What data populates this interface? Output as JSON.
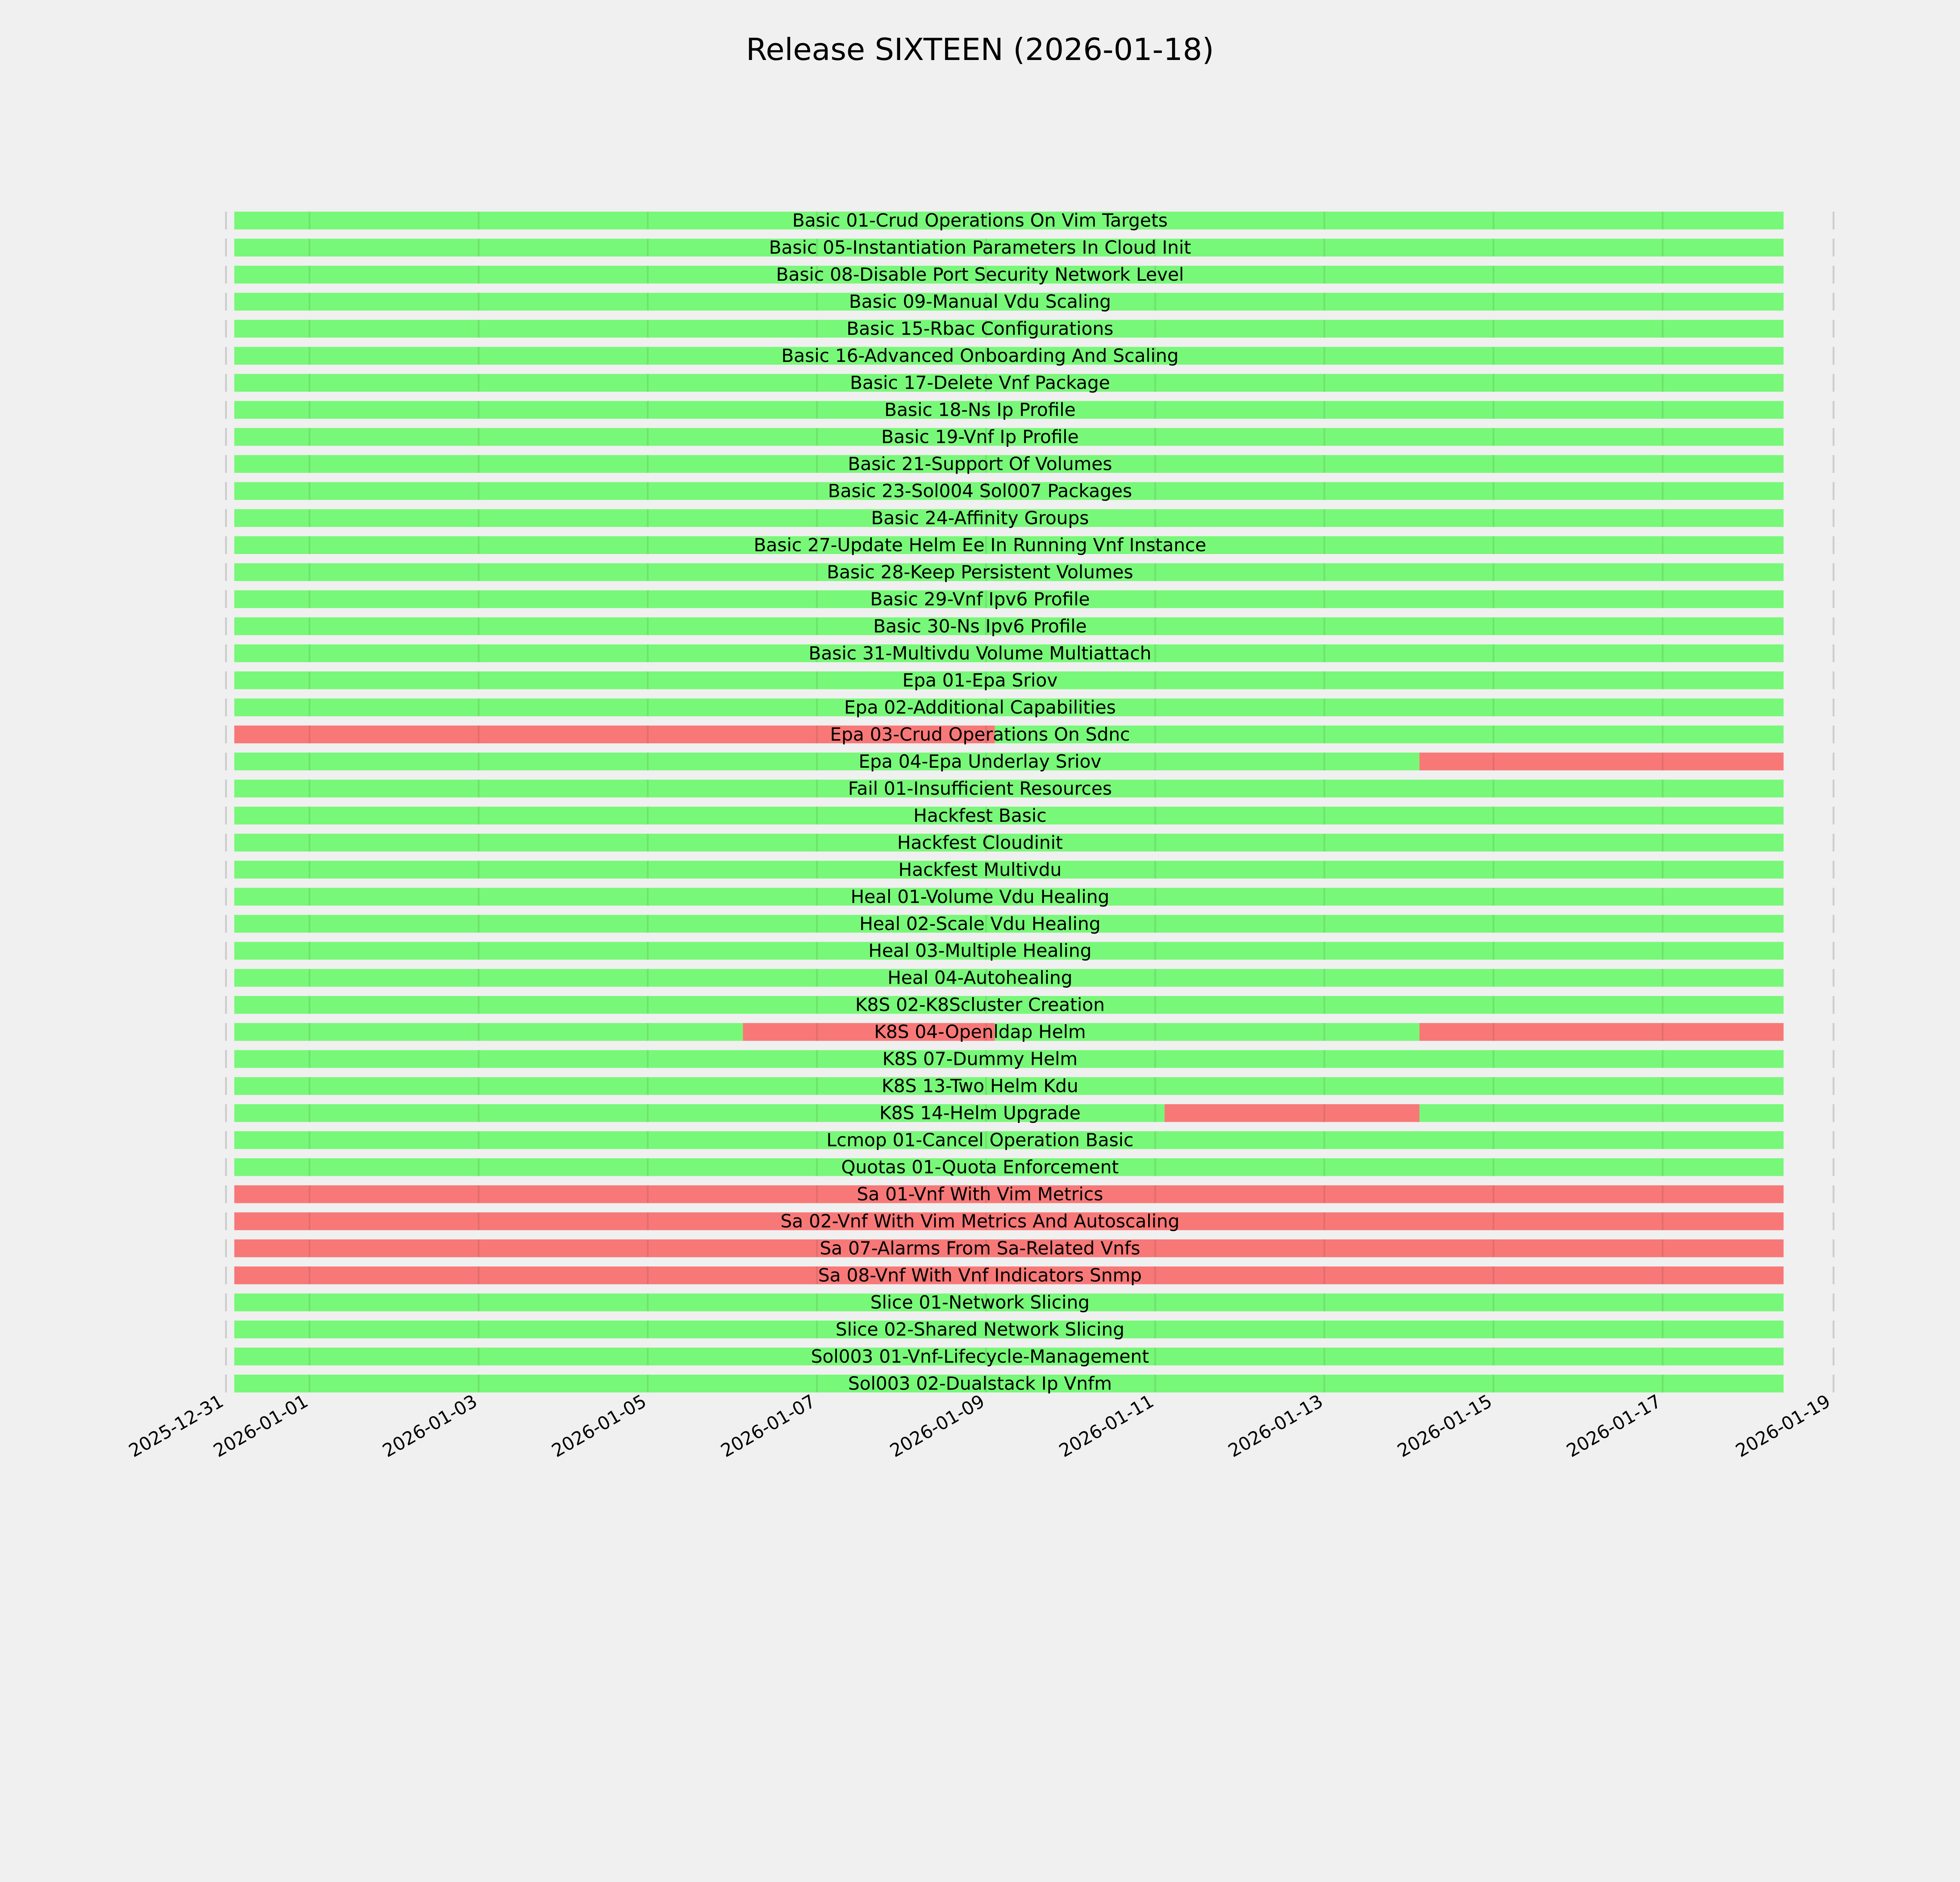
{
  "chart_data": {
    "type": "timeline",
    "title": "Release SIXTEEN (2026-01-18)",
    "xlabel": "",
    "ylabel": "",
    "x_axis": {
      "type": "date",
      "xlim": [
        "2025-12-31",
        "2026-01-19"
      ],
      "ticks": [
        "2025-12-31",
        "2026-01-01",
        "2026-01-03",
        "2026-01-05",
        "2026-01-07",
        "2026-01-09",
        "2026-01-11",
        "2026-01-13",
        "2026-01-15",
        "2026-01-17",
        "2026-01-19"
      ]
    },
    "grid": true,
    "colors": {
      "pass": "#78f878",
      "fail": "#f87878",
      "background": "#f0f0f0"
    },
    "range": {
      "start": "2025-12-31T02:40",
      "end": "2026-01-18T10:20"
    },
    "tests": [
      {
        "name": "Basic 01-Crud Operations On Vim Targets",
        "segments": [
          [
            "pass",
            "2025-12-31T02:40",
            "2026-01-18T10:20"
          ]
        ]
      },
      {
        "name": "Basic 05-Instantiation Parameters In Cloud Init",
        "segments": [
          [
            "pass",
            "2025-12-31T02:40",
            "2026-01-18T10:20"
          ]
        ]
      },
      {
        "name": "Basic 08-Disable Port Security Network Level",
        "segments": [
          [
            "pass",
            "2025-12-31T02:40",
            "2026-01-18T10:20"
          ]
        ]
      },
      {
        "name": "Basic 09-Manual Vdu Scaling",
        "segments": [
          [
            "pass",
            "2025-12-31T02:40",
            "2026-01-18T10:20"
          ]
        ]
      },
      {
        "name": "Basic 15-Rbac Configurations",
        "segments": [
          [
            "pass",
            "2025-12-31T02:40",
            "2026-01-18T10:20"
          ]
        ]
      },
      {
        "name": "Basic 16-Advanced Onboarding And Scaling",
        "segments": [
          [
            "pass",
            "2025-12-31T02:40",
            "2026-01-18T10:20"
          ]
        ]
      },
      {
        "name": "Basic 17-Delete Vnf Package",
        "segments": [
          [
            "pass",
            "2025-12-31T02:40",
            "2026-01-18T10:20"
          ]
        ]
      },
      {
        "name": "Basic 18-Ns Ip Profile",
        "segments": [
          [
            "pass",
            "2025-12-31T02:40",
            "2026-01-18T10:20"
          ]
        ]
      },
      {
        "name": "Basic 19-Vnf Ip Profile",
        "segments": [
          [
            "pass",
            "2025-12-31T02:40",
            "2026-01-18T10:20"
          ]
        ]
      },
      {
        "name": "Basic 21-Support Of Volumes",
        "segments": [
          [
            "pass",
            "2025-12-31T02:40",
            "2026-01-18T10:20"
          ]
        ]
      },
      {
        "name": "Basic 23-Sol004 Sol007 Packages",
        "segments": [
          [
            "pass",
            "2025-12-31T02:40",
            "2026-01-18T10:20"
          ]
        ]
      },
      {
        "name": "Basic 24-Affinity Groups",
        "segments": [
          [
            "pass",
            "2025-12-31T02:40",
            "2026-01-18T10:20"
          ]
        ]
      },
      {
        "name": "Basic 27-Update Helm Ee In Running Vnf Instance",
        "segments": [
          [
            "pass",
            "2025-12-31T02:40",
            "2026-01-18T10:20"
          ]
        ]
      },
      {
        "name": "Basic 28-Keep Persistent Volumes",
        "segments": [
          [
            "pass",
            "2025-12-31T02:40",
            "2026-01-18T10:20"
          ]
        ]
      },
      {
        "name": "Basic 29-Vnf Ipv6 Profile",
        "segments": [
          [
            "pass",
            "2025-12-31T02:40",
            "2026-01-18T10:20"
          ]
        ]
      },
      {
        "name": "Basic 30-Ns Ipv6 Profile",
        "segments": [
          [
            "pass",
            "2025-12-31T02:40",
            "2026-01-18T10:20"
          ]
        ]
      },
      {
        "name": "Basic 31-Multivdu Volume Multiattach",
        "segments": [
          [
            "pass",
            "2025-12-31T02:40",
            "2026-01-18T10:20"
          ]
        ]
      },
      {
        "name": "Epa 01-Epa Sriov",
        "segments": [
          [
            "pass",
            "2025-12-31T02:40",
            "2026-01-18T10:20"
          ]
        ]
      },
      {
        "name": "Epa 02-Additional Capabilities",
        "segments": [
          [
            "pass",
            "2025-12-31T02:40",
            "2026-01-18T10:20"
          ]
        ]
      },
      {
        "name": "Epa 03-Crud Operations On Sdnc",
        "segments": [
          [
            "fail",
            "2025-12-31T02:40",
            "2026-01-09T02:30"
          ],
          [
            "pass",
            "2026-01-09T02:30",
            "2026-01-18T10:20"
          ]
        ]
      },
      {
        "name": "Epa 04-Epa Underlay Sriov",
        "segments": [
          [
            "pass",
            "2025-12-31T02:40",
            "2026-01-14T03:00"
          ],
          [
            "fail",
            "2026-01-14T03:00",
            "2026-01-18T10:20"
          ]
        ]
      },
      {
        "name": "Fail 01-Insufficient Resources",
        "segments": [
          [
            "pass",
            "2025-12-31T02:40",
            "2026-01-18T10:20"
          ]
        ]
      },
      {
        "name": "Hackfest Basic",
        "segments": [
          [
            "pass",
            "2025-12-31T02:40",
            "2026-01-18T10:20"
          ]
        ]
      },
      {
        "name": "Hackfest Cloudinit",
        "segments": [
          [
            "pass",
            "2025-12-31T02:40",
            "2026-01-18T10:20"
          ]
        ]
      },
      {
        "name": "Hackfest Multivdu",
        "segments": [
          [
            "pass",
            "2025-12-31T02:40",
            "2026-01-18T10:20"
          ]
        ]
      },
      {
        "name": "Heal 01-Volume Vdu Healing",
        "segments": [
          [
            "pass",
            "2025-12-31T02:40",
            "2026-01-18T10:20"
          ]
        ]
      },
      {
        "name": "Heal 02-Scale Vdu Healing",
        "segments": [
          [
            "pass",
            "2025-12-31T02:40",
            "2026-01-18T10:20"
          ]
        ]
      },
      {
        "name": "Heal 03-Multiple Healing",
        "segments": [
          [
            "pass",
            "2025-12-31T02:40",
            "2026-01-18T10:20"
          ]
        ]
      },
      {
        "name": "Heal 04-Autohealing",
        "segments": [
          [
            "pass",
            "2025-12-31T02:40",
            "2026-01-18T10:20"
          ]
        ]
      },
      {
        "name": "K8S 02-K8Scluster Creation",
        "segments": [
          [
            "pass",
            "2025-12-31T02:40",
            "2026-01-18T10:20"
          ]
        ]
      },
      {
        "name": "K8S 04-Openldap Helm",
        "segments": [
          [
            "pass",
            "2025-12-31T02:40",
            "2026-01-06T03:00"
          ],
          [
            "fail",
            "2026-01-06T03:00",
            "2026-01-09T02:30"
          ],
          [
            "pass",
            "2026-01-09T02:30",
            "2026-01-14T03:00"
          ],
          [
            "fail",
            "2026-01-14T03:00",
            "2026-01-18T10:20"
          ]
        ]
      },
      {
        "name": "K8S 07-Dummy Helm",
        "segments": [
          [
            "pass",
            "2025-12-31T02:40",
            "2026-01-18T10:20"
          ]
        ]
      },
      {
        "name": "K8S 13-Two Helm Kdu",
        "segments": [
          [
            "pass",
            "2025-12-31T02:40",
            "2026-01-18T10:20"
          ]
        ]
      },
      {
        "name": "K8S 14-Helm Upgrade",
        "segments": [
          [
            "pass",
            "2025-12-31T02:40",
            "2026-01-11T02:40"
          ],
          [
            "fail",
            "2026-01-11T02:40",
            "2026-01-14T03:00"
          ],
          [
            "pass",
            "2026-01-14T03:00",
            "2026-01-18T10:20"
          ]
        ]
      },
      {
        "name": "Lcmop 01-Cancel Operation Basic",
        "segments": [
          [
            "pass",
            "2025-12-31T02:40",
            "2026-01-18T10:20"
          ]
        ]
      },
      {
        "name": "Quotas 01-Quota Enforcement",
        "segments": [
          [
            "pass",
            "2025-12-31T02:40",
            "2026-01-18T10:20"
          ]
        ]
      },
      {
        "name": "Sa 01-Vnf With Vim Metrics",
        "segments": [
          [
            "fail",
            "2025-12-31T02:40",
            "2026-01-18T10:20"
          ]
        ]
      },
      {
        "name": "Sa 02-Vnf With Vim Metrics And Autoscaling",
        "segments": [
          [
            "fail",
            "2025-12-31T02:40",
            "2026-01-18T10:20"
          ]
        ]
      },
      {
        "name": "Sa 07-Alarms From Sa-Related Vnfs",
        "segments": [
          [
            "fail",
            "2025-12-31T02:40",
            "2026-01-18T10:20"
          ]
        ]
      },
      {
        "name": "Sa 08-Vnf With Vnf Indicators Snmp",
        "segments": [
          [
            "fail",
            "2025-12-31T02:40",
            "2026-01-18T10:20"
          ]
        ]
      },
      {
        "name": "Slice 01-Network Slicing",
        "segments": [
          [
            "pass",
            "2025-12-31T02:40",
            "2026-01-18T10:20"
          ]
        ]
      },
      {
        "name": "Slice 02-Shared Network Slicing",
        "segments": [
          [
            "pass",
            "2025-12-31T02:40",
            "2026-01-18T10:20"
          ]
        ]
      },
      {
        "name": "Sol003 01-Vnf-Lifecycle-Management",
        "segments": [
          [
            "pass",
            "2025-12-31T02:40",
            "2026-01-18T10:20"
          ]
        ]
      },
      {
        "name": "Sol003 02-Dualstack Ip Vnfm",
        "segments": [
          [
            "pass",
            "2025-12-31T02:40",
            "2026-01-18T10:20"
          ]
        ]
      }
    ]
  }
}
